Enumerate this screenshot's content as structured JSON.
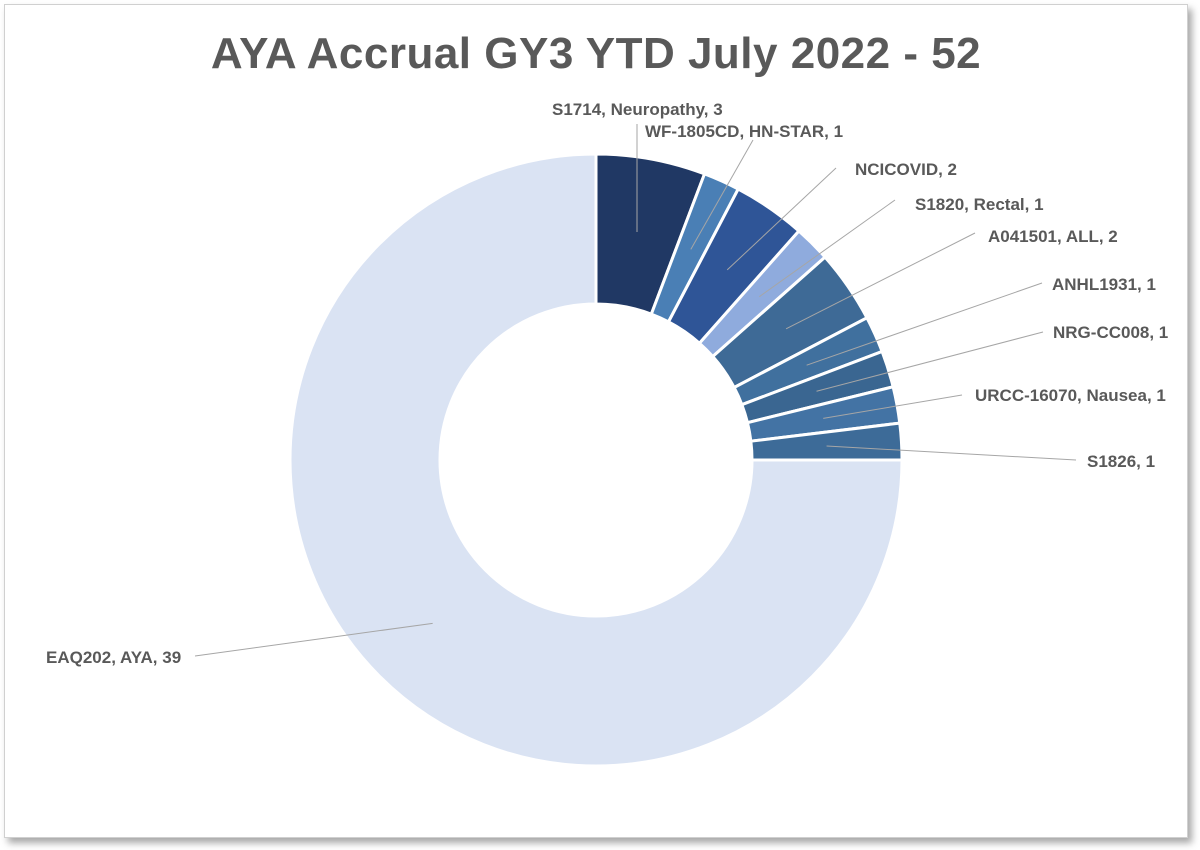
{
  "chart_data": {
    "type": "pie",
    "subtype": "doughnut",
    "title": "AYA Accrual GY3 YTD July 2022 - 52",
    "slices": [
      {
        "label": "S1714, Neuropathy, 3",
        "category": "S1714",
        "descriptor": "Neuropathy",
        "value": 3,
        "color": "#203864"
      },
      {
        "label": "WF-1805CD, HN-STAR, 1",
        "category": "WF-1805CD",
        "descriptor": "HN-STAR",
        "value": 1,
        "color": "#4a7fb5"
      },
      {
        "label": "NCICOVID, 2",
        "category": "NCICOVID",
        "value": 2,
        "color": "#2f5597"
      },
      {
        "label": "S1820, Rectal, 1",
        "category": "S1820",
        "descriptor": "Rectal",
        "value": 1,
        "color": "#8fabdd"
      },
      {
        "label": "A041501, ALL, 2",
        "category": "A041501",
        "descriptor": "ALL",
        "value": 2,
        "color": "#3e6a96"
      },
      {
        "label": "ANHL1931, 1",
        "category": "ANHL1931",
        "value": 1,
        "color": "#40709e"
      },
      {
        "label": "NRG-CC008, 1",
        "category": "NRG-CC008",
        "value": 1,
        "color": "#3a6691"
      },
      {
        "label": "URCC-16070, Nausea, 1",
        "category": "URCC-16070",
        "descriptor": "Nausea",
        "value": 1,
        "color": "#4373a4"
      },
      {
        "label": "S1826, 1",
        "category": "S1826",
        "value": 1,
        "color": "#3d6b98"
      },
      {
        "label": "EAQ202, AYA, 39",
        "category": "EAQ202",
        "descriptor": "AYA",
        "value": 39,
        "color": "#dae3f3"
      }
    ],
    "total": 52,
    "legend": "none",
    "label_style": "data labels with leader lines"
  },
  "colors": {
    "label_text": "#595959",
    "leader_line": "#a6a6a6",
    "slice_border": "#ffffff"
  }
}
